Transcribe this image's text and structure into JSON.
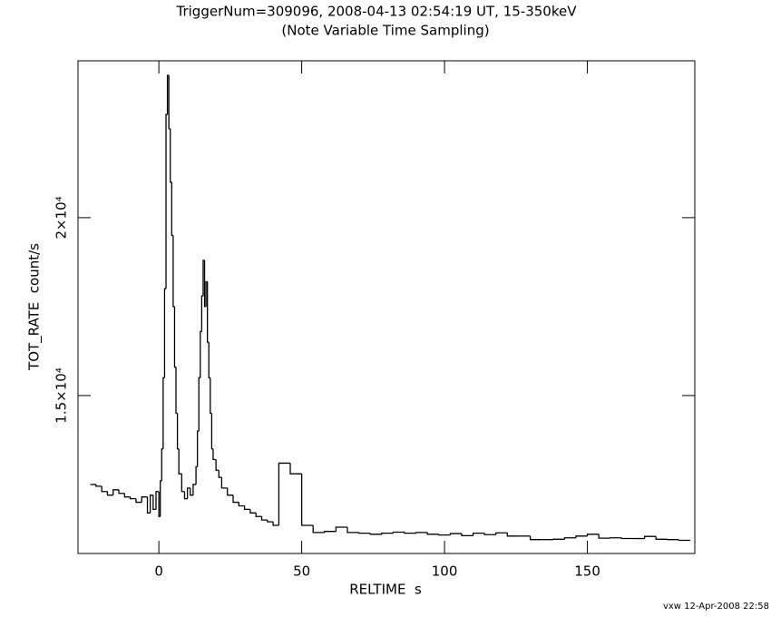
{
  "chart_data": {
    "type": "step",
    "title": "TriggerNum=309096, 2008-04-13 02:54:19 UT, 15-350keV",
    "subtitle": "(Note Variable Time Sampling)",
    "x_label": "RELTIME  s",
    "y_label": "TOT_RATE  count/s",
    "footer": "vxw 12-Apr-2008 22:58",
    "color": "#000000",
    "xlim": [
      -28.3,
      187.6
    ],
    "ylim": [
      10560,
      24410
    ],
    "xticks": [
      0,
      50,
      100,
      150
    ],
    "yticks": [
      {
        "value": 15000,
        "label": "1.5×10⁴"
      },
      {
        "value": 20000,
        "label": "2×10⁴"
      }
    ],
    "x": [
      -24,
      -22,
      -20,
      -18,
      -16,
      -14,
      -12,
      -10,
      -8,
      -6,
      -4,
      -3,
      -2,
      -1,
      0,
      0.5,
      1,
      1.5,
      2,
      2.5,
      3,
      3.5,
      4,
      4.5,
      5,
      5.5,
      6,
      6.5,
      7,
      8,
      9,
      10,
      11,
      12,
      13,
      13.5,
      14,
      14.5,
      15,
      15.5,
      16,
      16.5,
      17,
      17.5,
      18,
      18.5,
      19,
      20,
      21,
      22,
      24,
      26,
      28,
      30,
      32,
      34,
      36,
      38,
      40,
      42,
      46,
      50,
      54,
      58,
      62,
      66,
      70,
      74,
      78,
      82,
      86,
      90,
      94,
      98,
      102,
      106,
      110,
      114,
      118,
      122,
      126,
      130,
      134,
      138,
      142,
      146,
      150,
      154,
      158,
      162,
      166,
      170,
      174,
      178,
      182
    ],
    "values": [
      12500,
      12450,
      12300,
      12200,
      12350,
      12250,
      12150,
      12100,
      12000,
      12150,
      11700,
      12200,
      11800,
      12300,
      11600,
      12600,
      13500,
      15500,
      18000,
      22900,
      24000,
      22500,
      21000,
      19500,
      17500,
      15800,
      14500,
      13500,
      12800,
      12300,
      12100,
      12400,
      12200,
      12500,
      13000,
      14000,
      15500,
      16800,
      17800,
      18800,
      17500,
      18200,
      16500,
      15500,
      14500,
      13500,
      13200,
      12900,
      12700,
      12400,
      12200,
      12000,
      11900,
      11800,
      11700,
      11600,
      11500,
      11450,
      11350,
      13100,
      12800,
      11350,
      11150,
      11180,
      11300,
      11150,
      11130,
      11100,
      11130,
      11160,
      11130,
      11150,
      11100,
      11080,
      11120,
      11060,
      11130,
      11090,
      11140,
      11050,
      11050,
      10950,
      10950,
      10960,
      11000,
      11050,
      11100,
      10990,
      11000,
      10980,
      10980,
      11040,
      10960,
      10950,
      10930
    ]
  }
}
